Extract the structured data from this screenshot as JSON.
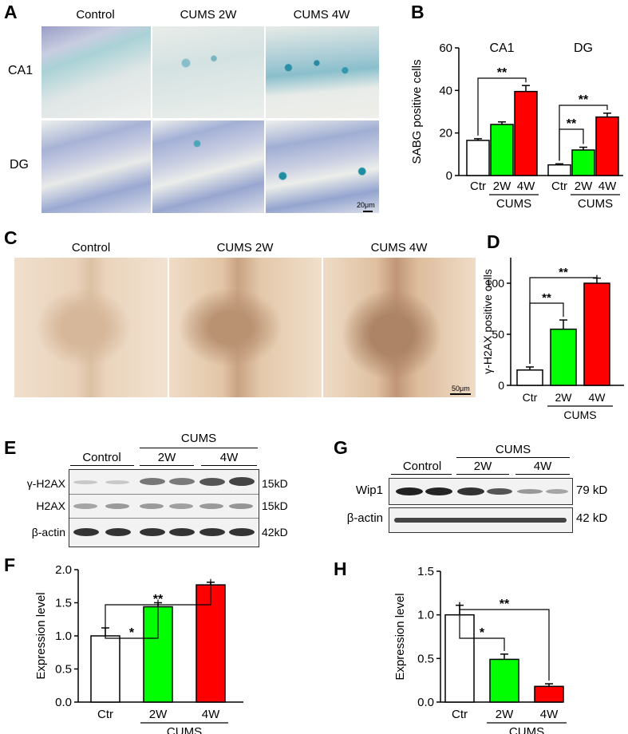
{
  "panels": {
    "A": {
      "label": "A",
      "columns": [
        "Control",
        "CUMS 2W",
        "CUMS 4W"
      ],
      "rows": [
        "CA1",
        "DG"
      ],
      "scale": "20μm"
    },
    "C": {
      "label": "C",
      "columns": [
        "Control",
        "CUMS 2W",
        "CUMS 4W"
      ],
      "scale": "50μm"
    },
    "E": {
      "label": "E",
      "header_control": "Control",
      "header_group": "CUMS",
      "header_2w": "2W",
      "header_4w": "4W",
      "rows": [
        {
          "name": "γ-H2AX",
          "kd": "15kD"
        },
        {
          "name": "H2AX",
          "kd": "15kD"
        },
        {
          "name": "β-actin",
          "kd": "42kD"
        }
      ]
    },
    "G": {
      "label": "G",
      "header_control": "Control",
      "header_group": "CUMS",
      "header_2w": "2W",
      "header_4w": "4W",
      "rows": [
        {
          "name": "Wip1",
          "kd": "79 kD"
        },
        {
          "name": "β-actin",
          "kd": "42 kD"
        }
      ]
    }
  },
  "colors": {
    "ctr": "#ffffff",
    "w2": "#00ff00",
    "w4": "#ff0000",
    "tissue_blue": "#8fc3cf",
    "tissue_brown": "#e8c9a8"
  },
  "chart_data": [
    {
      "panel": "B",
      "type": "bar",
      "ylabel": "SABG positive  cells",
      "ylim": [
        0,
        60
      ],
      "yticks": [
        0,
        20,
        40,
        60
      ],
      "groups": [
        {
          "name": "CA1",
          "categories": [
            "Ctr",
            "2W",
            "4W"
          ],
          "values": [
            16.5,
            24,
            39.5
          ],
          "errors": [
            0.8,
            1.2,
            2.8
          ]
        },
        {
          "name": "DG",
          "categories": [
            "Ctr",
            "2W",
            "4W"
          ],
          "values": [
            5,
            12,
            27.5
          ],
          "errors": [
            0.5,
            1.3,
            1.8
          ]
        }
      ],
      "group_label": "CUMS",
      "significance": [
        {
          "group": 0,
          "from": 0,
          "to": 2,
          "label": "**"
        },
        {
          "group": 1,
          "from": 0,
          "to": 1,
          "label": "**"
        },
        {
          "group": 1,
          "from": 0,
          "to": 2,
          "label": "**"
        }
      ]
    },
    {
      "panel": "D",
      "type": "bar",
      "ylabel": "γ-H2AX positive cells",
      "ylim": [
        0,
        125
      ],
      "yticks": [
        0,
        50,
        100
      ],
      "categories": [
        "Ctr",
        "2W",
        "4W"
      ],
      "values": [
        15,
        55,
        100
      ],
      "errors": [
        3,
        9,
        5
      ],
      "group_label": "CUMS",
      "significance": [
        {
          "from": 0,
          "to": 1,
          "label": "**"
        },
        {
          "from": 0,
          "to": 2,
          "label": "**"
        }
      ]
    },
    {
      "panel": "F",
      "type": "bar",
      "ylabel": "Expression  level",
      "ylim": [
        0,
        2.0
      ],
      "yticks": [
        "0.0",
        "0.5",
        "1.0",
        "1.5",
        "2.0"
      ],
      "categories": [
        "Ctr",
        "2W",
        "4W"
      ],
      "values": [
        1.0,
        1.44,
        1.77
      ],
      "errors": [
        0.12,
        0.06,
        0.04
      ],
      "group_label": "CUMS",
      "significance": [
        {
          "from": 0,
          "to": 1,
          "label": "*"
        },
        {
          "from": 0,
          "to": 2,
          "label": "**"
        }
      ]
    },
    {
      "panel": "H",
      "type": "bar",
      "ylabel": "Expression  level",
      "ylim": [
        0,
        1.5
      ],
      "yticks": [
        "0.0",
        "0.5",
        "1.0",
        "1.5"
      ],
      "categories": [
        "Ctr",
        "2W",
        "4W"
      ],
      "values": [
        1.0,
        0.49,
        0.18
      ],
      "errors": [
        0.11,
        0.06,
        0.03
      ],
      "group_label": "CUMS",
      "significance": [
        {
          "from": 0,
          "to": 1,
          "label": "*"
        },
        {
          "from": 0,
          "to": 2,
          "label": "**"
        }
      ]
    }
  ]
}
